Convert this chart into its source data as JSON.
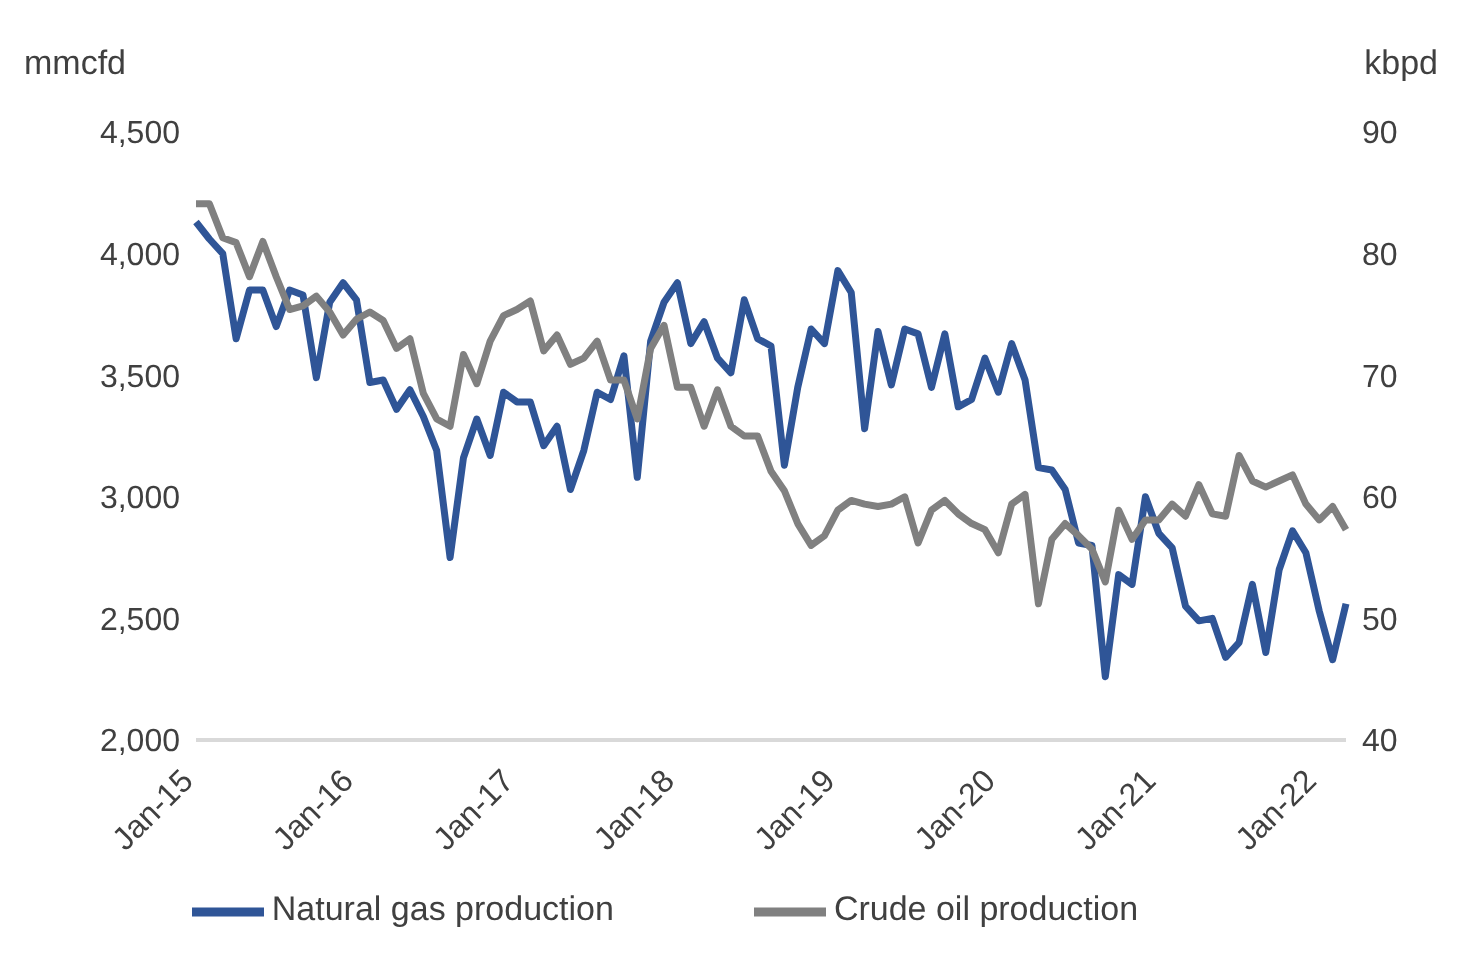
{
  "chart_data": {
    "type": "line",
    "ylabel": "mmcfd",
    "y2label": "kbpd",
    "categories": [
      "Jan-15",
      null,
      null,
      null,
      null,
      null,
      null,
      null,
      null,
      null,
      null,
      null,
      "Jan-16",
      null,
      null,
      null,
      null,
      null,
      null,
      null,
      null,
      null,
      null,
      null,
      "Jan-17",
      null,
      null,
      null,
      null,
      null,
      null,
      null,
      null,
      null,
      null,
      null,
      "Jan-18",
      null,
      null,
      null,
      null,
      null,
      null,
      null,
      null,
      null,
      null,
      null,
      "Jan-19",
      null,
      null,
      null,
      null,
      null,
      null,
      null,
      null,
      null,
      null,
      null,
      "Jan-20",
      null,
      null,
      null,
      null,
      null,
      null,
      null,
      null,
      null,
      null,
      null,
      "Jan-21",
      null,
      null,
      null,
      null,
      null,
      null,
      null,
      null,
      null,
      null,
      null,
      "Jan-22",
      null,
      null
    ],
    "series": [
      {
        "name": "Natural gas production",
        "color": "#2f5597",
        "values": [
          4130,
          4060,
          4000,
          3650,
          3850,
          3850,
          3700,
          3850,
          3830,
          3490,
          3800,
          3880,
          3810,
          3470,
          3480,
          3360,
          3440,
          3330,
          3190,
          2750,
          3160,
          3320,
          3170,
          3430,
          3390,
          3390,
          3210,
          3290,
          3030,
          3190,
          3430,
          3400,
          3580,
          3080,
          3640,
          3800,
          3880,
          3630,
          3720,
          3570,
          3510,
          3810,
          3650,
          3620,
          3130,
          3450,
          3690,
          3630,
          3930,
          3840,
          3280,
          3680,
          3460,
          3690,
          3670,
          3450,
          3670,
          3370,
          3400,
          3570,
          3430,
          3630,
          3480,
          3120,
          3110,
          3030,
          2810,
          2800,
          2260,
          2680,
          2640,
          3000,
          2850,
          2790,
          2550,
          2490,
          2500,
          2340,
          2400,
          2640,
          2360,
          2700,
          2860,
          2770,
          2530,
          2330,
          2560
        ]
      },
      {
        "name": "Crude oil production",
        "color": "#808080",
        "axis": "y2",
        "values": [
          84.1,
          84.1,
          81.3,
          80.9,
          78.1,
          81,
          78.1,
          75.4,
          75.7,
          76.5,
          75.2,
          73.3,
          74.6,
          75.2,
          74.5,
          72.2,
          73,
          68.5,
          66.4,
          65.8,
          71.7,
          69.3,
          72.8,
          74.9,
          75.4,
          76.1,
          72,
          73.3,
          70.9,
          71.4,
          72.8,
          69.6,
          69.6,
          66.4,
          72.2,
          74.1,
          69,
          69,
          65.8,
          68.8,
          65.8,
          65,
          65,
          62.1,
          60.5,
          57.8,
          56,
          56.8,
          58.9,
          59.7,
          59.4,
          59.2,
          59.4,
          60,
          56.2,
          58.9,
          59.7,
          58.6,
          57.8,
          57.3,
          55.4,
          59.4,
          60.2,
          51.2,
          56.5,
          57.8,
          56.8,
          55.7,
          53,
          58.9,
          56.5,
          58.1,
          58.1,
          59.4,
          58.4,
          61,
          58.6,
          58.4,
          63.4,
          61.3,
          60.8,
          61.3,
          61.8,
          59.4,
          58.1,
          59.2,
          57.3
        ]
      }
    ],
    "ylim": [
      2000,
      4500
    ],
    "yticks": [
      {
        "value": 2000,
        "label": "2,000"
      },
      {
        "value": 2500,
        "label": "2,500"
      },
      {
        "value": 3000,
        "label": "3,000"
      },
      {
        "value": 3500,
        "label": "3,500"
      },
      {
        "value": 4000,
        "label": "4,000"
      },
      {
        "value": 4500,
        "label": "4,500"
      }
    ],
    "y2lim": [
      40,
      90
    ],
    "y2ticks": [
      40,
      50,
      60,
      70,
      80,
      90
    ],
    "grid": false,
    "legend": "bottom",
    "marker": "none",
    "line_style": "solid"
  }
}
